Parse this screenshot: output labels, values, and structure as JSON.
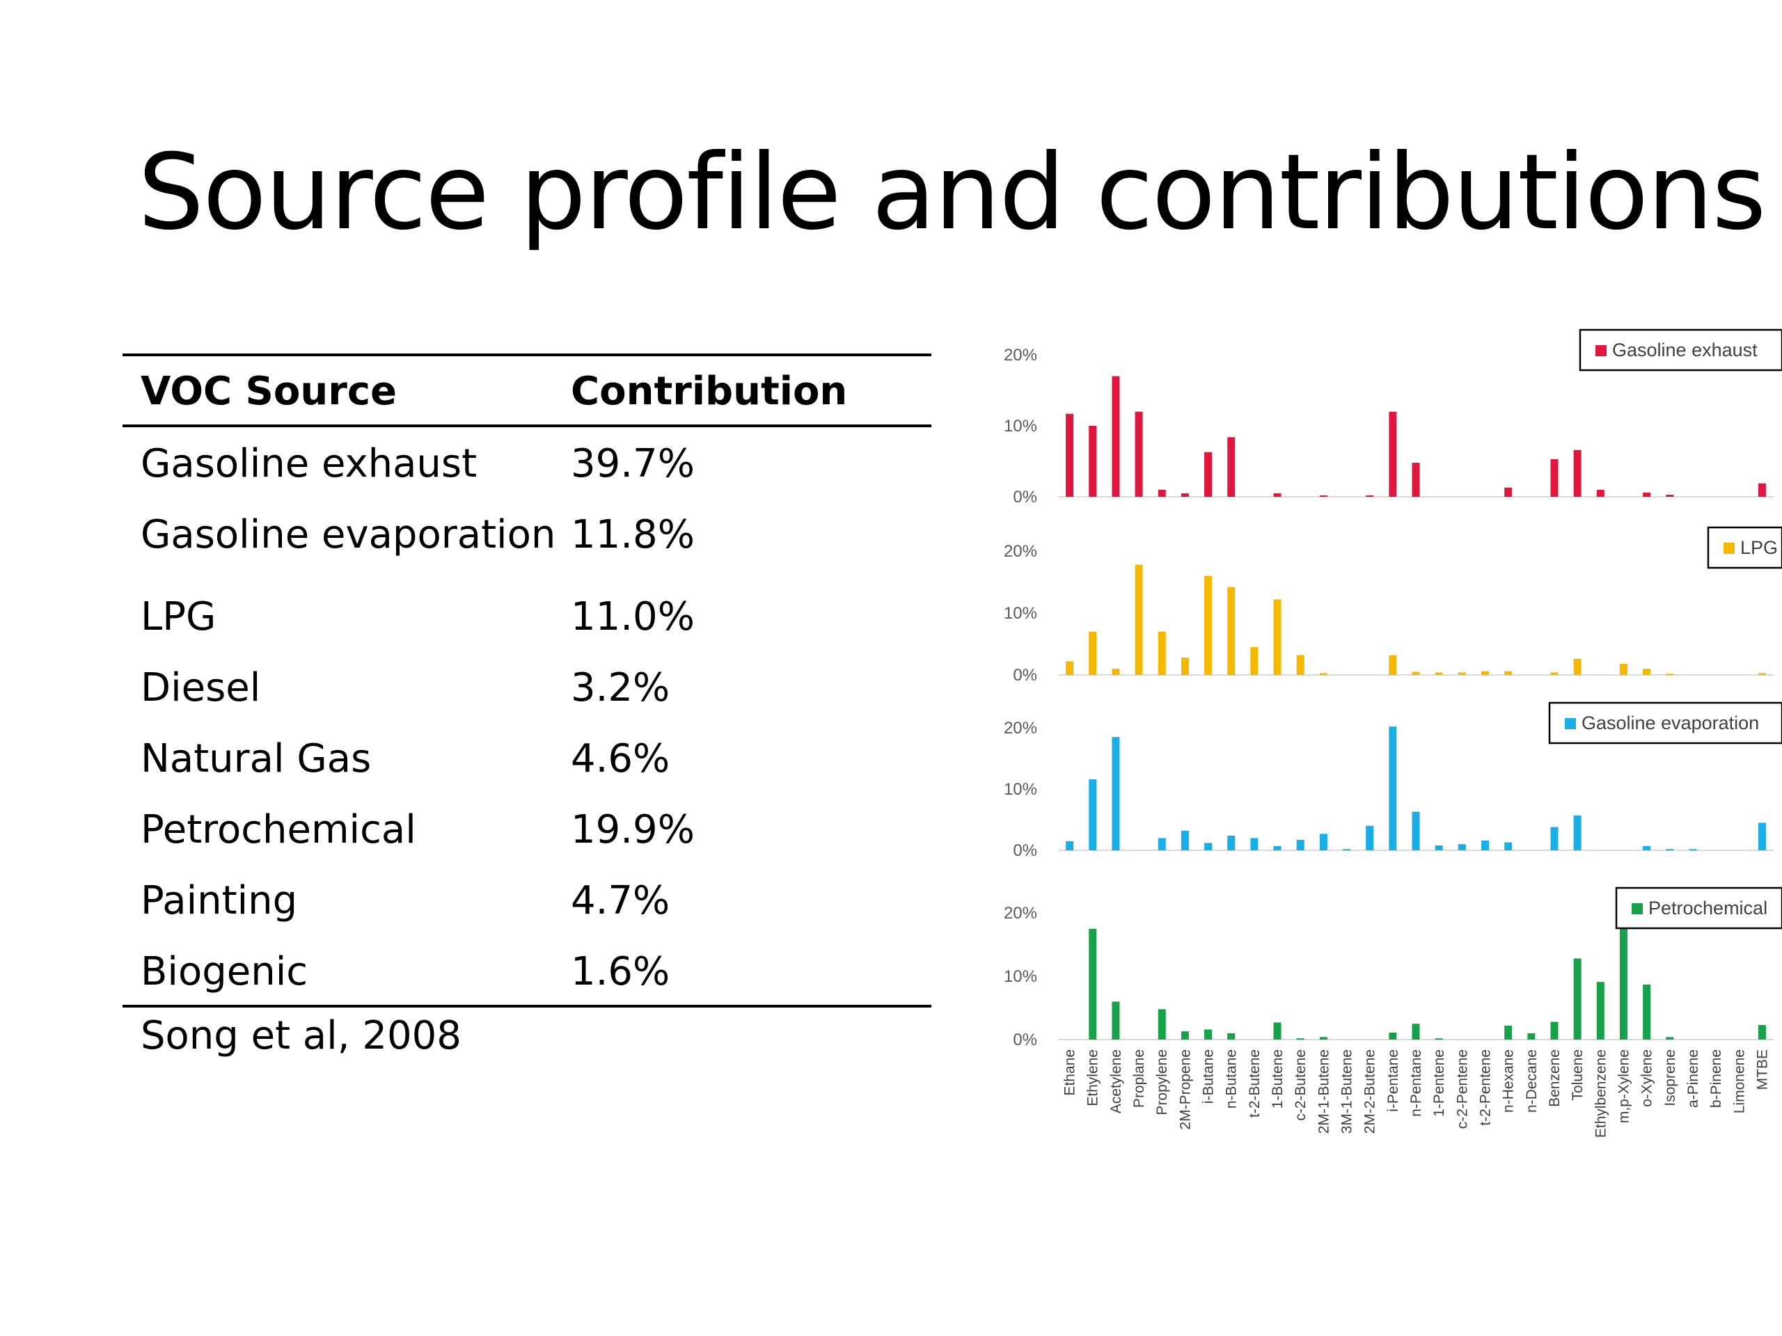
{
  "slide": {
    "title": "Source profile and contributions"
  },
  "table": {
    "headers": [
      "VOC Source",
      "Contribution"
    ],
    "rows": [
      {
        "source": "Gasoline exhaust",
        "contribution": "39.7%"
      },
      {
        "source": "Gasoline evaporation",
        "contribution": "11.8%"
      },
      {
        "source": "LPG",
        "contribution": "11.0%"
      },
      {
        "source": "Diesel",
        "contribution": "3.2%"
      },
      {
        "source": "Natural Gas",
        "contribution": "4.6%"
      },
      {
        "source": "Petrochemical",
        "contribution": "19.9%"
      },
      {
        "source": "Painting",
        "contribution": "4.7%"
      },
      {
        "source": "Biogenic",
        "contribution": "1.6%"
      }
    ],
    "citation": "Song et al, 2008"
  },
  "chart_data": [
    {
      "type": "bar",
      "title": "",
      "xlabel": "",
      "ylabel": "",
      "ylim": [
        0,
        20
      ],
      "yticks": [
        "0%",
        "10%",
        "20%"
      ],
      "grid": false,
      "legend": "top-right",
      "color": "#E0163E",
      "categories": [
        "Ethane",
        "Ethylene",
        "Acetylene",
        "Proplane",
        "Propylene",
        "2M-Propene",
        "i-Butane",
        "n-Butane",
        "t-2-Butene",
        "1-Butene",
        "c-2-Butene",
        "2M-1-Butene",
        "3M-1-Butene",
        "2M-2-Butene",
        "i-Pentane",
        "n-Pentane",
        "1-Pentene",
        "c-2-Pentene",
        "t-2-Pentene",
        "n-Hexane",
        "n-Decane",
        "Benzene",
        "Toluene",
        "Ethylbenzene",
        "m,p-Xylene",
        "o-Xylene",
        "Isoprene",
        "a-Pinene",
        "b-Pinene",
        "Limonene",
        "MTBE"
      ],
      "series": [
        {
          "name": "Gasoline exhaust",
          "values": [
            11.7,
            10,
            17,
            12,
            1,
            0.5,
            6.3,
            8.4,
            0,
            0.5,
            0,
            0.2,
            0,
            0.2,
            12,
            4.8,
            0,
            0,
            0,
            1.3,
            0,
            5.3,
            6.6,
            1,
            0,
            0.6,
            0.3,
            0,
            0,
            0,
            1.9
          ]
        }
      ]
    },
    {
      "type": "bar",
      "title": "",
      "xlabel": "",
      "ylabel": "",
      "ylim": [
        0,
        20
      ],
      "yticks": [
        "0%",
        "10%",
        "20%"
      ],
      "grid": false,
      "legend": "top-right",
      "color": "#F5B800",
      "categories": [
        "Ethane",
        "Ethylene",
        "Acetylene",
        "Proplane",
        "Propylene",
        "2M-Propene",
        "i-Butane",
        "n-Butane",
        "t-2-Butene",
        "1-Butene",
        "c-2-Butene",
        "2M-1-Butene",
        "3M-1-Butene",
        "2M-2-Butene",
        "i-Pentane",
        "n-Pentane",
        "1-Pentene",
        "c-2-Pentene",
        "t-2-Pentene",
        "n-Hexane",
        "n-Decane",
        "Benzene",
        "Toluene",
        "Ethylbenzene",
        "m,p-Xylene",
        "o-Xylene",
        "Isoprene",
        "a-Pinene",
        "b-Pinene",
        "Limonene",
        "MTBE"
      ],
      "series": [
        {
          "name": "LPG",
          "values": [
            2.2,
            7,
            1,
            17.8,
            7,
            2.8,
            16,
            14.2,
            4.5,
            12.2,
            3.2,
            0.3,
            0,
            0,
            3.2,
            0.5,
            0.4,
            0.4,
            0.6,
            0.6,
            0,
            0.4,
            2.6,
            0,
            1.8,
            1,
            0.2,
            0,
            0,
            0,
            0.3
          ]
        }
      ]
    },
    {
      "type": "bar",
      "title": "",
      "xlabel": "",
      "ylabel": "",
      "ylim": [
        0,
        20
      ],
      "yticks": [
        "0%",
        "10%",
        "20%"
      ],
      "grid": false,
      "legend": "top-right",
      "color": "#1AAEE6",
      "categories": [
        "Ethane",
        "Ethylene",
        "Acetylene",
        "Proplane",
        "Propylene",
        "2M-Propene",
        "i-Butane",
        "n-Butane",
        "t-2-Butene",
        "1-Butene",
        "c-2-Butene",
        "2M-1-Butene",
        "3M-1-Butene",
        "2M-2-Butene",
        "i-Pentane",
        "n-Pentane",
        "1-Pentene",
        "c-2-Pentene",
        "t-2-Pentene",
        "n-Hexane",
        "n-Decane",
        "Benzene",
        "Toluene",
        "Ethylbenzene",
        "m,p-Xylene",
        "o-Xylene",
        "Isoprene",
        "a-Pinene",
        "b-Pinene",
        "Limonene",
        "MTBE"
      ],
      "series": [
        {
          "name": "Gasoline evaporation",
          "values": [
            1.5,
            11.6,
            18.5,
            0,
            2,
            3.2,
            1.2,
            2.4,
            2,
            0.7,
            1.7,
            2.7,
            0.2,
            4,
            20.2,
            6.3,
            0.8,
            1,
            1.6,
            1.3,
            0,
            3.8,
            5.7,
            0,
            0,
            0.7,
            0.2,
            0.2,
            0,
            0,
            4.5
          ]
        }
      ]
    },
    {
      "type": "bar",
      "title": "",
      "xlabel": "",
      "ylabel": "",
      "ylim": [
        0,
        20
      ],
      "yticks": [
        "0%",
        "10%",
        "20%"
      ],
      "grid": false,
      "legend": "top-right",
      "color": "#17A24A",
      "categories": [
        "Ethane",
        "Ethylene",
        "Acetylene",
        "Proplane",
        "Propylene",
        "2M-Propene",
        "i-Butane",
        "n-Butane",
        "t-2-Butene",
        "1-Butene",
        "c-2-Butene",
        "2M-1-Butene",
        "3M-1-Butene",
        "2M-2-Butene",
        "i-Pentane",
        "n-Pentane",
        "1-Pentene",
        "c-2-Pentene",
        "t-2-Pentene",
        "n-Hexane",
        "n-Decane",
        "Benzene",
        "Toluene",
        "Ethylbenzene",
        "m,p-Xylene",
        "o-Xylene",
        "Isoprene",
        "a-Pinene",
        "b-Pinene",
        "Limonene",
        "MTBE"
      ],
      "series": [
        {
          "name": "Petrochemical",
          "values": [
            0,
            17.5,
            6,
            0,
            4.8,
            1.3,
            1.6,
            1,
            0,
            2.7,
            0.2,
            0.4,
            0,
            0,
            1.1,
            2.5,
            0.2,
            0,
            0,
            2.2,
            1,
            2.8,
            12.8,
            9.1,
            20,
            8.7,
            0.4,
            0,
            0,
            0,
            2.3
          ]
        }
      ]
    }
  ]
}
